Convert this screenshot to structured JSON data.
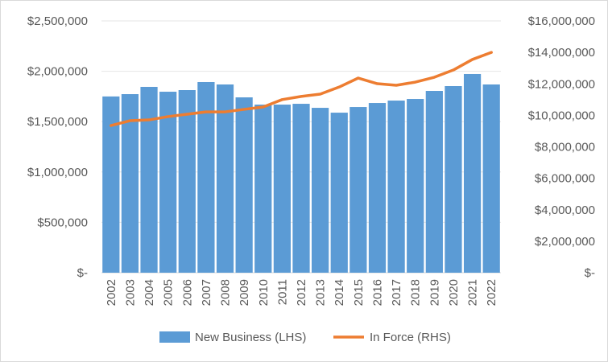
{
  "chart_data": {
    "type": "bar+line",
    "categories": [
      "2002",
      "2003",
      "2004",
      "2005",
      "2006",
      "2007",
      "2008",
      "2009",
      "2010",
      "2011",
      "2012",
      "2013",
      "2014",
      "2015",
      "2016",
      "2017",
      "2018",
      "2019",
      "2020",
      "2021",
      "2022"
    ],
    "series": [
      {
        "name": "New Business (LHS)",
        "type": "bar",
        "axis": "left",
        "color": "#5b9bd5",
        "values": [
          1750000,
          1773000,
          1845000,
          1797000,
          1813000,
          1893000,
          1869000,
          1741000,
          1669000,
          1669000,
          1677000,
          1637000,
          1589000,
          1645000,
          1685000,
          1709000,
          1725000,
          1805000,
          1853000,
          1973000,
          1869000
        ]
      },
      {
        "name": "In Force (RHS)",
        "type": "line",
        "axis": "right",
        "color": "#ed7d31",
        "values": [
          9350000,
          9660000,
          9710000,
          9920000,
          10070000,
          10220000,
          10220000,
          10380000,
          10530000,
          11000000,
          11200000,
          11350000,
          11800000,
          12370000,
          12010000,
          11910000,
          12110000,
          12420000,
          12880000,
          13550000,
          14000000
        ]
      }
    ],
    "left_axis": {
      "min": 0,
      "max": 2500000,
      "ticks": [
        "$-",
        "$500,000",
        "$1,000,000",
        "$1,500,000",
        "$2,000,000",
        "$2,500,000"
      ]
    },
    "right_axis": {
      "min": 0,
      "max": 16000000,
      "ticks": [
        "$-",
        "$2,000,000",
        "$4,000,000",
        "$6,000,000",
        "$8,000,000",
        "$10,000,000",
        "$12,000,000",
        "$14,000,000",
        "$16,000,000"
      ]
    },
    "grid": true,
    "legend": {
      "position": "bottom",
      "items": [
        "New Business (LHS)",
        "In Force (RHS)"
      ]
    }
  }
}
